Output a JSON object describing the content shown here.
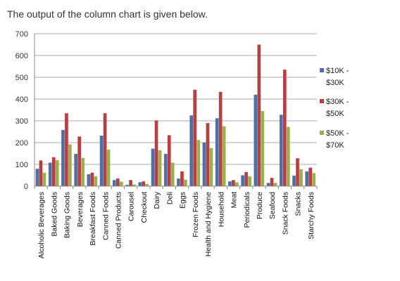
{
  "heading": "The output of the column chart is given below.",
  "chart_data": {
    "type": "bar",
    "title": "",
    "xlabel": "",
    "ylabel": "",
    "ylim": [
      0,
      700
    ],
    "yticks": [
      0,
      100,
      200,
      300,
      400,
      500,
      600,
      700
    ],
    "grid": true,
    "legend_position": "right",
    "categories": [
      "Alcoholic Beverages",
      "Baked Goods",
      "Baking Goods",
      "Beverages",
      "Breakfast Foods",
      "Canned Foods",
      "Canned Products",
      "Carousel",
      "Checkout",
      "Dairy",
      "Deli",
      "Eggs",
      "Frozen Foods",
      "Health and Hygiene",
      "Household",
      "Meat",
      "Periodicals",
      "Produce",
      "Seafood",
      "Snack Foods",
      "Snacks",
      "Starchy Foods"
    ],
    "series": [
      {
        "name": "$10K - $30K",
        "color": "#4F6FA8",
        "values": [
          80,
          108,
          258,
          148,
          55,
          232,
          28,
          6,
          18,
          172,
          148,
          35,
          325,
          200,
          312,
          22,
          50,
          420,
          15,
          328,
          48,
          68
        ]
      },
      {
        "name": "$30K - $50K",
        "color": "#B5403F",
        "values": [
          118,
          133,
          335,
          228,
          62,
          335,
          35,
          28,
          22,
          302,
          234,
          68,
          443,
          290,
          433,
          28,
          65,
          650,
          38,
          535,
          128,
          85
        ]
      },
      {
        "name": "$50K - $70K",
        "color": "#98B14F",
        "values": [
          62,
          120,
          192,
          130,
          45,
          168,
          20,
          8,
          10,
          165,
          108,
          30,
          212,
          175,
          275,
          18,
          45,
          345,
          15,
          272,
          78,
          60
        ]
      }
    ],
    "extra_series_colors": [
      "#7A5DA1",
      "#4DA3BD",
      "#F39A4A"
    ]
  }
}
